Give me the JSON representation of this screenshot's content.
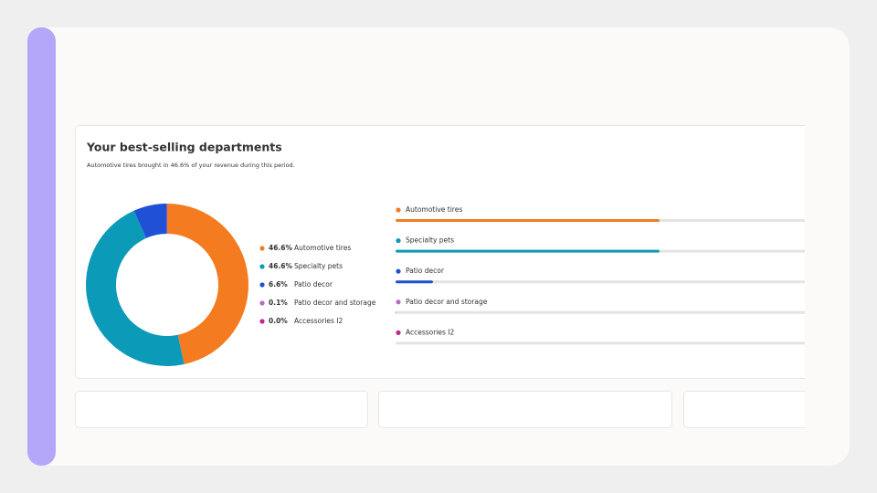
{
  "chart_data": {
    "type": "pie",
    "title": "Your best-selling departments",
    "subtitle": "Automotive tires brought in 46.6% of your revenue during this period.",
    "categories": [
      "Automotive tires",
      "Specialty pets",
      "Patio decor",
      "Patio decor and storage",
      "Accessories I2"
    ],
    "values": [
      46.6,
      46.6,
      6.6,
      0.1,
      0.0
    ],
    "value_labels": [
      "46.6%",
      "46.6%",
      "6.6%",
      "0.1%",
      "0.0%"
    ],
    "colors": [
      "#f47b20",
      "#0b9ab8",
      "#1f50d6",
      "#b46cc0",
      "#c4268e"
    ]
  }
}
